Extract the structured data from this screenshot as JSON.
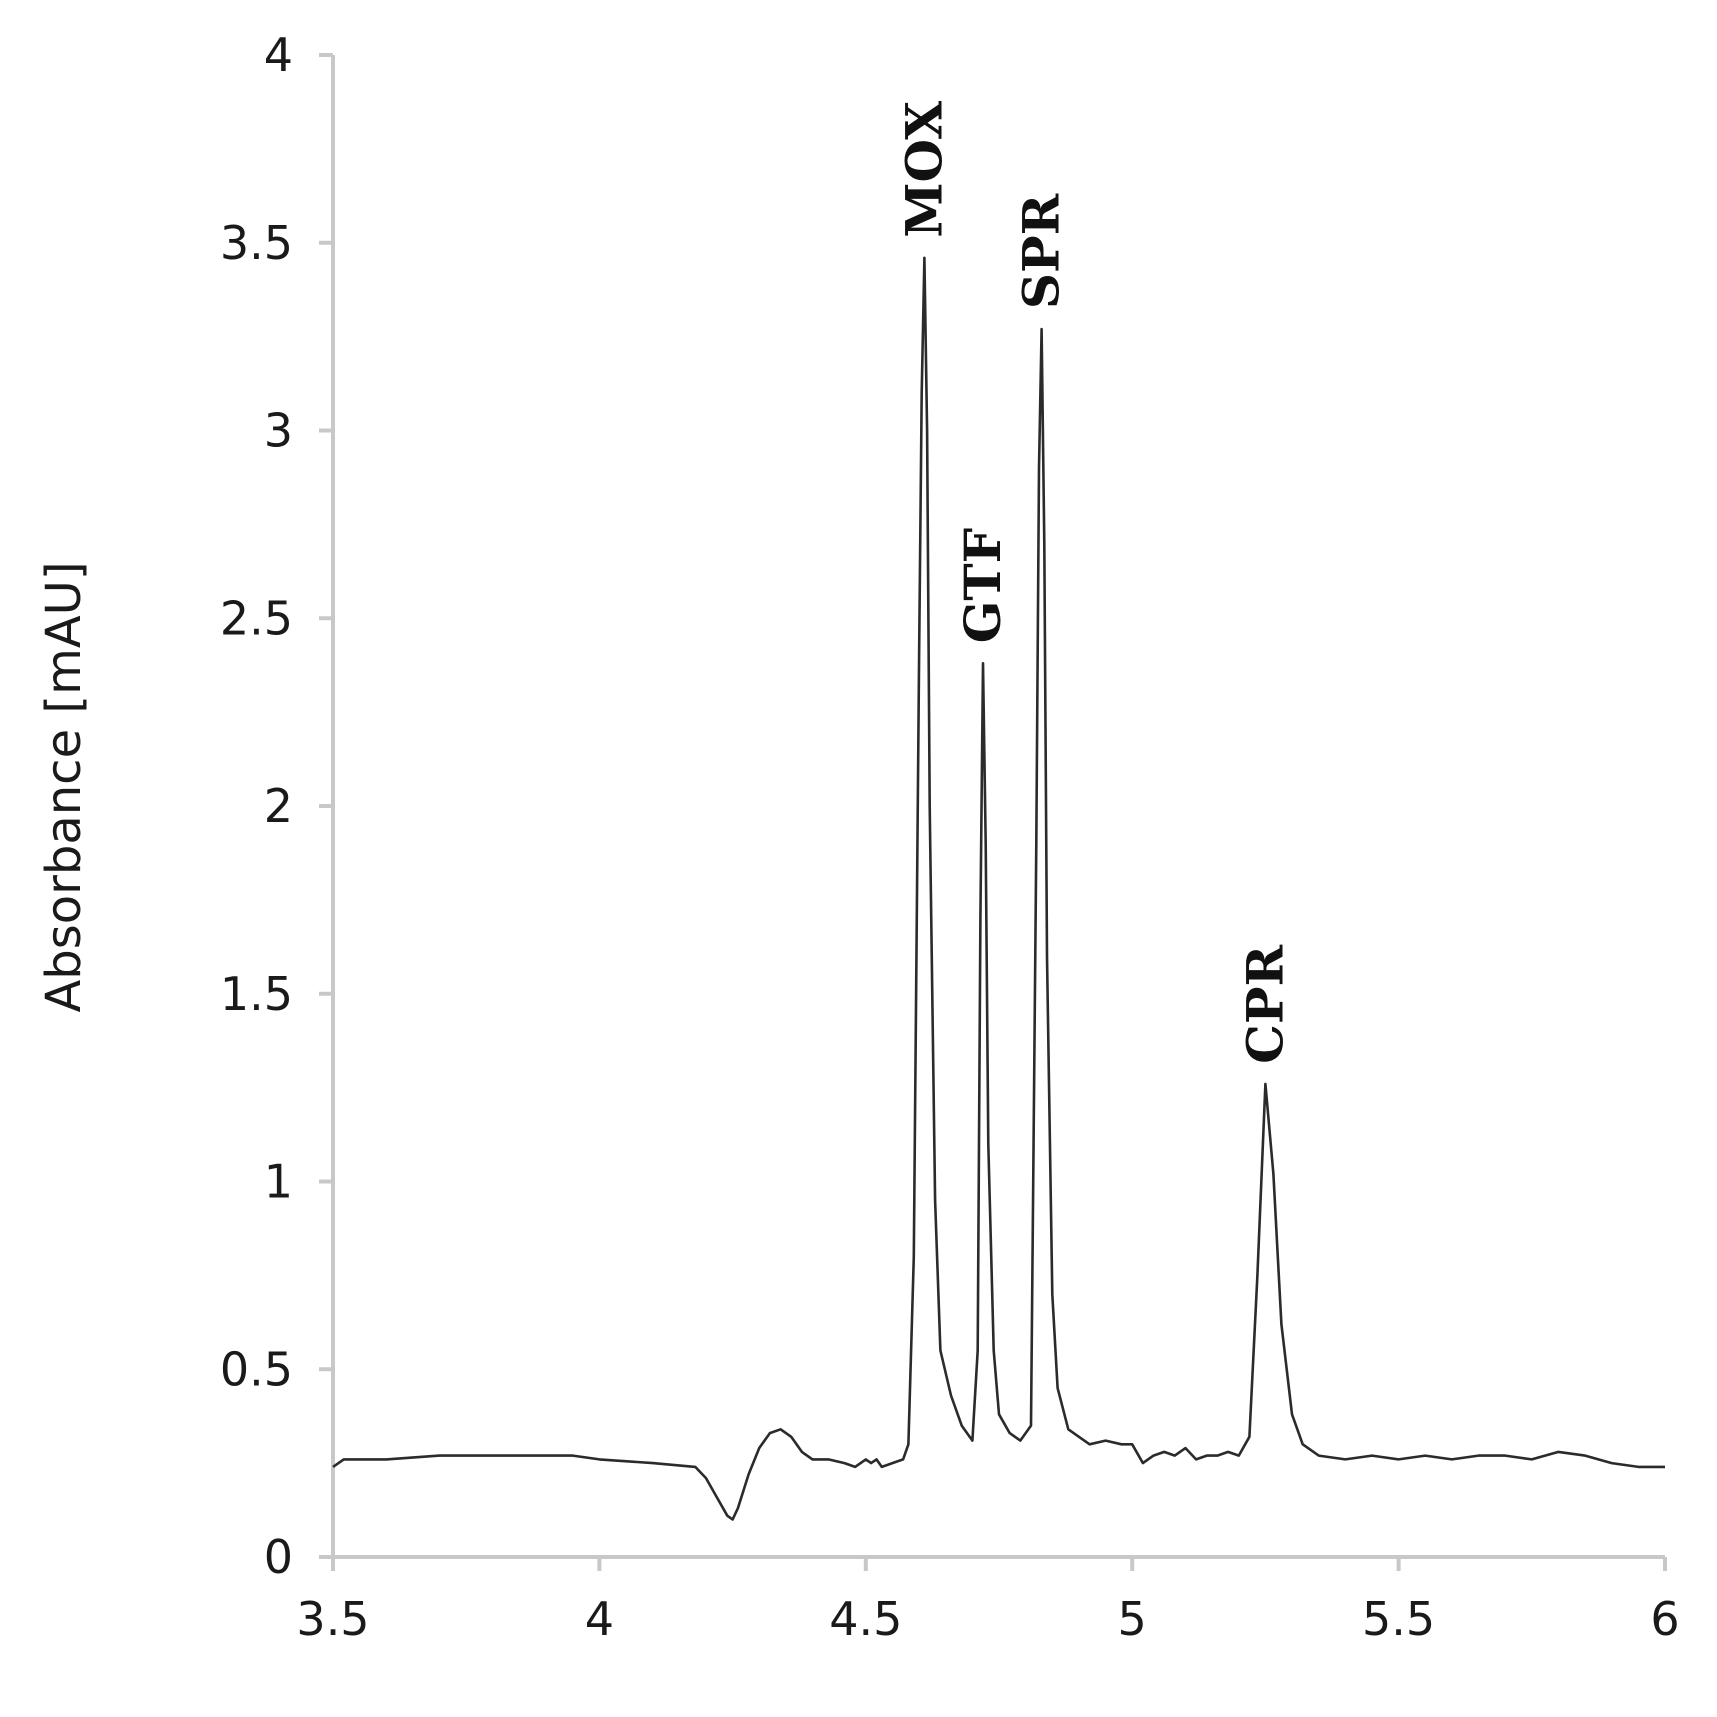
{
  "chart_data": {
    "type": "line",
    "title": "",
    "xlabel": "",
    "ylabel": "Absorbance [mAU]",
    "xlim": [
      3.5,
      6
    ],
    "ylim": [
      0,
      4
    ],
    "x_ticks": [
      "3.5",
      "4",
      "4.5",
      "5",
      "5.5",
      "6"
    ],
    "y_ticks": [
      "0",
      "0.5",
      "1",
      "1.5",
      "2",
      "2.5",
      "3",
      "3.5",
      "4"
    ],
    "grid": false,
    "legend": "none",
    "colors": {
      "trace": "#2b2b2b",
      "axis": "#c8c8c8"
    },
    "peaks": [
      {
        "label": "MOX",
        "x": 4.61,
        "y": 3.46
      },
      {
        "label": "GTF",
        "x": 4.72,
        "y": 2.38
      },
      {
        "label": "SPR",
        "x": 4.83,
        "y": 3.27
      },
      {
        "label": "CPR",
        "x": 5.25,
        "y": 1.26
      }
    ],
    "series": [
      {
        "x": [
          3.5,
          3.52,
          3.6,
          3.7,
          3.8,
          3.9,
          3.95,
          4.0,
          4.1,
          4.18,
          4.2,
          4.22,
          4.24,
          4.25,
          4.26,
          4.28,
          4.3,
          4.32,
          4.34,
          4.36,
          4.38,
          4.4,
          4.43,
          4.46,
          4.48,
          4.5,
          4.51,
          4.52,
          4.53,
          4.55,
          4.57,
          4.58,
          4.59,
          4.6,
          4.605,
          4.61,
          4.615,
          4.62,
          4.63,
          4.64,
          4.66,
          4.68,
          4.7,
          4.71,
          4.715,
          4.72,
          4.725,
          4.73,
          4.74,
          4.75,
          4.77,
          4.79,
          4.81,
          4.82,
          4.825,
          4.83,
          4.835,
          4.84,
          4.85,
          4.86,
          4.88,
          4.9,
          4.92,
          4.95,
          4.98,
          5.0,
          5.02,
          5.04,
          5.06,
          5.08,
          5.1,
          5.12,
          5.14,
          5.16,
          5.18,
          5.2,
          5.22,
          5.235,
          5.25,
          5.265,
          5.28,
          5.3,
          5.32,
          5.35,
          5.4,
          5.45,
          5.5,
          5.55,
          5.6,
          5.65,
          5.7,
          5.75,
          5.8,
          5.85,
          5.9,
          5.95,
          6.0
        ],
        "y": [
          0.24,
          0.26,
          0.26,
          0.27,
          0.27,
          0.27,
          0.27,
          0.26,
          0.25,
          0.24,
          0.21,
          0.16,
          0.11,
          0.1,
          0.13,
          0.22,
          0.29,
          0.33,
          0.34,
          0.32,
          0.28,
          0.26,
          0.26,
          0.25,
          0.24,
          0.26,
          0.25,
          0.26,
          0.24,
          0.25,
          0.26,
          0.3,
          0.8,
          2.4,
          3.1,
          3.46,
          3.0,
          2.0,
          0.95,
          0.55,
          0.43,
          0.35,
          0.31,
          0.55,
          1.7,
          2.38,
          1.9,
          1.1,
          0.55,
          0.38,
          0.33,
          0.31,
          0.35,
          1.9,
          2.9,
          3.27,
          2.7,
          1.6,
          0.7,
          0.45,
          0.34,
          0.32,
          0.3,
          0.31,
          0.3,
          0.3,
          0.25,
          0.27,
          0.28,
          0.27,
          0.29,
          0.26,
          0.27,
          0.27,
          0.28,
          0.27,
          0.32,
          0.75,
          1.26,
          1.02,
          0.62,
          0.38,
          0.3,
          0.27,
          0.26,
          0.27,
          0.26,
          0.27,
          0.26,
          0.27,
          0.27,
          0.26,
          0.28,
          0.27,
          0.25,
          0.24,
          0.24
        ]
      }
    ]
  }
}
